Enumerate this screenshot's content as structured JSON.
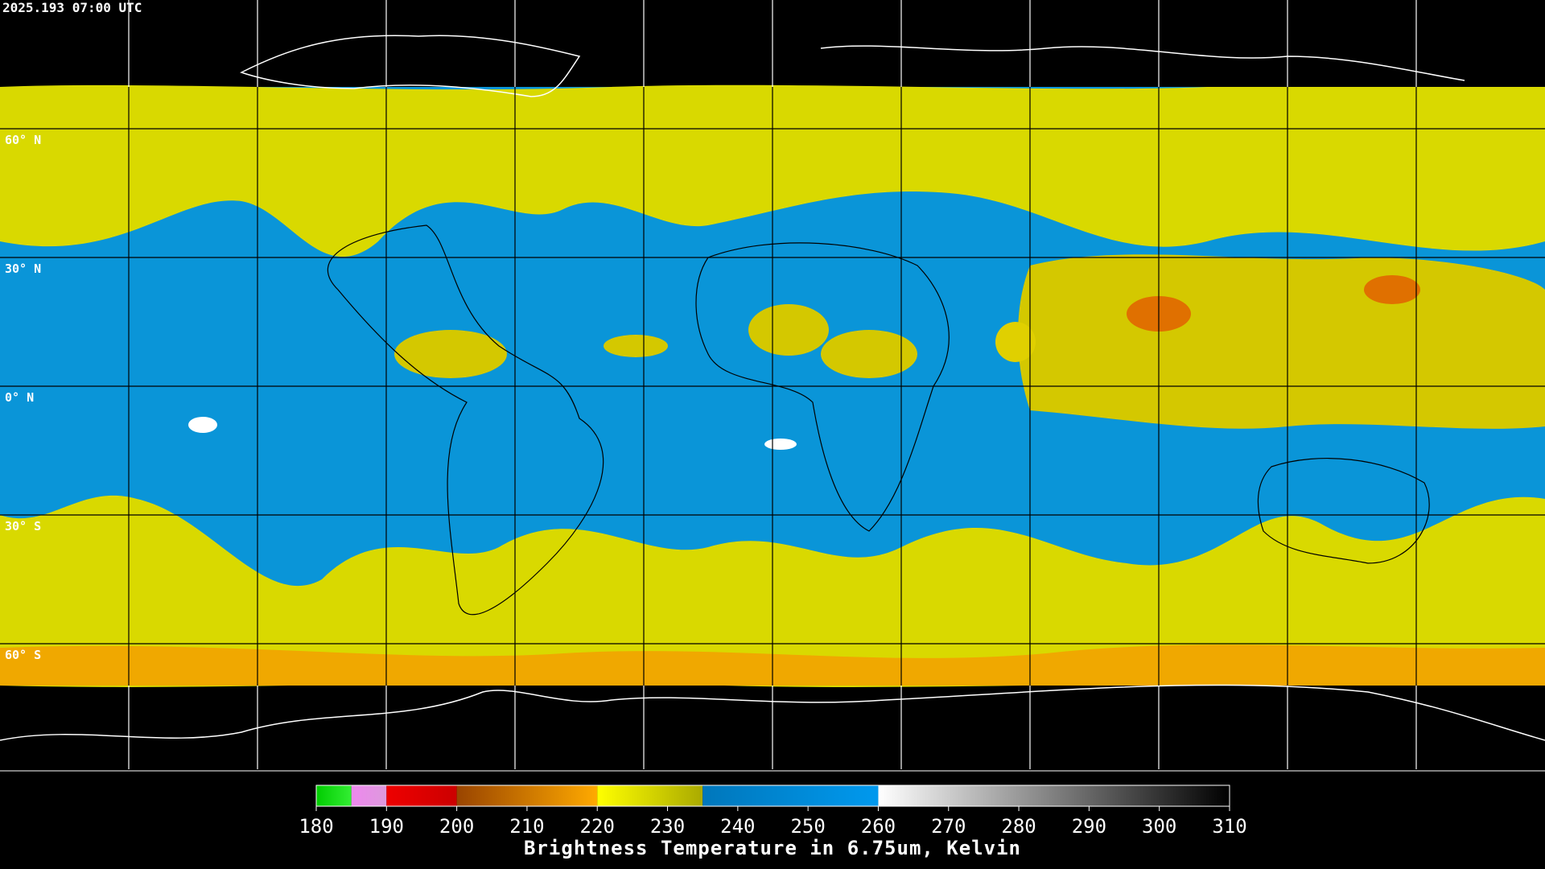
{
  "timestamp": "2025.193 07:00 UTC",
  "latitude_labels": [
    "60° N",
    "30° N",
    "0° N",
    "30° S",
    "60° S"
  ],
  "colorbar": {
    "title": "Brightness Temperature in 6.75um, Kelvin",
    "range": [
      180,
      310
    ],
    "ticks": [
      180,
      190,
      200,
      210,
      220,
      230,
      240,
      250,
      260,
      270,
      280,
      290,
      300,
      310
    ],
    "segments": [
      {
        "from": 180,
        "to": 185,
        "color_start": "#00cc00",
        "color_end": "#33ee33"
      },
      {
        "from": 185,
        "to": 190,
        "color_start": "#ee88ee",
        "color_end": "#dd99dd"
      },
      {
        "from": 190,
        "to": 200,
        "color_start": "#ee0000",
        "color_end": "#cc0000"
      },
      {
        "from": 200,
        "to": 220,
        "color_start": "#994400",
        "color_end": "#ffaa00"
      },
      {
        "from": 220,
        "to": 235,
        "color_start": "#ffff00",
        "color_end": "#aaaa00"
      },
      {
        "from": 235,
        "to": 260,
        "color_start": "#0077bb",
        "color_end": "#0099ee"
      },
      {
        "from": 260,
        "to": 310,
        "color_start": "#ffffff",
        "color_end": "#000000"
      }
    ]
  }
}
